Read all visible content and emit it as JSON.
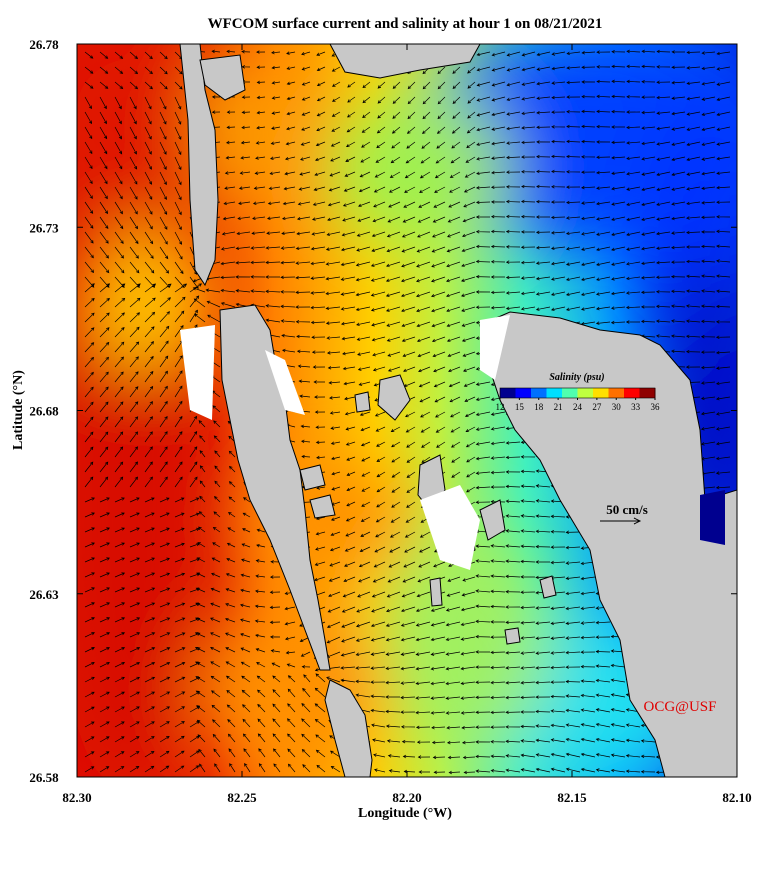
{
  "map": {
    "title": "WFCOM surface current and salinity at hour 1 on 08/21/2021",
    "x_axis": {
      "label": "Longitude (°W)",
      "lim": [
        82.3,
        82.1
      ],
      "ticks": [
        {
          "value": 82.3,
          "label": "82.30"
        },
        {
          "value": 82.25,
          "label": "82.25"
        },
        {
          "value": 82.2,
          "label": "82.20"
        },
        {
          "value": 82.15,
          "label": "82.15"
        },
        {
          "value": 82.1,
          "label": "82.10"
        }
      ]
    },
    "y_axis": {
      "label": "Latitude (°N)",
      "lim": [
        26.58,
        26.78
      ],
      "ticks": [
        {
          "value": 26.58,
          "label": "26.58"
        },
        {
          "value": 26.63,
          "label": "26.63"
        },
        {
          "value": 26.68,
          "label": "26.68"
        },
        {
          "value": 26.73,
          "label": "26.73"
        },
        {
          "value": 26.78,
          "label": "26.78"
        }
      ]
    },
    "colorbar": {
      "title": "Salinity (psu)",
      "lim": [
        12,
        36
      ],
      "ticks": [
        12,
        15,
        18,
        21,
        24,
        27,
        30,
        33,
        36
      ],
      "colors": [
        "#00008f",
        "#0000ff",
        "#0070ff",
        "#00dfff",
        "#50ffaf",
        "#bfff40",
        "#ffdf00",
        "#ff7000",
        "#ff0000",
        "#8f0000"
      ]
    },
    "scale_label": "50 cm/s",
    "credit": "OCG@USF"
  }
}
